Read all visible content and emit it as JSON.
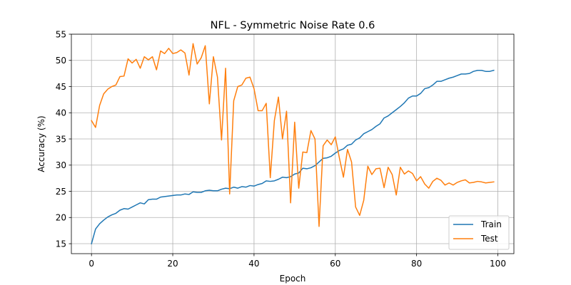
{
  "chart_data": {
    "type": "line",
    "title": "NFL - Symmetric Noise Rate 0.6",
    "xlabel": "Epoch",
    "ylabel": "Accuracy (%)",
    "xlim": [
      -4.95,
      103.95
    ],
    "ylim": [
      13.1,
      55.0
    ],
    "xticks": [
      0,
      20,
      40,
      60,
      80,
      100
    ],
    "yticks": [
      15,
      20,
      25,
      30,
      35,
      40,
      45,
      50,
      55
    ],
    "grid": true,
    "legend_position": "lower right",
    "colors": {
      "Train": "#1f77b4",
      "Test": "#ff7f0e"
    },
    "x": [
      0,
      1,
      2,
      3,
      4,
      5,
      6,
      7,
      8,
      9,
      10,
      11,
      12,
      13,
      14,
      15,
      16,
      17,
      18,
      19,
      20,
      21,
      22,
      23,
      24,
      25,
      26,
      27,
      28,
      29,
      30,
      31,
      32,
      33,
      34,
      35,
      36,
      37,
      38,
      39,
      40,
      41,
      42,
      43,
      44,
      45,
      46,
      47,
      48,
      49,
      50,
      51,
      52,
      53,
      54,
      55,
      56,
      57,
      58,
      59,
      60,
      61,
      62,
      63,
      64,
      65,
      66,
      67,
      68,
      69,
      70,
      71,
      72,
      73,
      74,
      75,
      76,
      77,
      78,
      79,
      80,
      81,
      82,
      83,
      84,
      85,
      86,
      87,
      88,
      89,
      90,
      91,
      92,
      93,
      94,
      95,
      96,
      97,
      98,
      99
    ],
    "series": [
      {
        "name": "Train",
        "values": [
          15.0,
          17.8,
          18.8,
          19.5,
          20.1,
          20.5,
          20.8,
          21.4,
          21.7,
          21.6,
          22.0,
          22.4,
          22.8,
          22.6,
          23.4,
          23.5,
          23.5,
          23.9,
          24.0,
          24.1,
          24.2,
          24.3,
          24.3,
          24.5,
          24.4,
          24.9,
          24.8,
          24.8,
          25.1,
          25.2,
          25.1,
          25.1,
          25.4,
          25.6,
          25.5,
          25.8,
          25.6,
          25.9,
          25.8,
          26.1,
          26.0,
          26.3,
          26.5,
          27.0,
          26.9,
          27.0,
          27.3,
          27.7,
          27.6,
          27.8,
          28.3,
          28.5,
          29.4,
          29.3,
          29.5,
          29.9,
          30.6,
          31.3,
          31.4,
          31.7,
          32.3,
          32.8,
          33.1,
          33.8,
          34.0,
          34.8,
          35.2,
          36.0,
          36.4,
          36.8,
          37.4,
          37.9,
          39.0,
          39.4,
          40.0,
          40.6,
          41.2,
          41.9,
          42.8,
          43.2,
          43.2,
          43.7,
          44.6,
          44.8,
          45.3,
          46.0,
          46.0,
          46.3,
          46.6,
          46.8,
          47.1,
          47.4,
          47.4,
          47.5,
          47.9,
          48.1,
          48.1,
          47.9,
          47.9,
          48.1
        ]
      },
      {
        "name": "Test",
        "values": [
          38.5,
          37.2,
          41.4,
          43.6,
          44.5,
          45.0,
          45.3,
          46.9,
          47.0,
          50.3,
          49.5,
          50.2,
          48.5,
          50.7,
          50.1,
          50.7,
          48.2,
          51.8,
          51.3,
          52.3,
          51.3,
          51.5,
          52.0,
          51.4,
          47.2,
          53.2,
          49.3,
          50.5,
          52.8,
          41.7,
          50.7,
          46.8,
          34.8,
          48.5,
          24.5,
          42.3,
          45.0,
          45.3,
          46.6,
          46.8,
          44.6,
          40.4,
          40.4,
          41.8,
          27.6,
          38.5,
          43.0,
          35.0,
          40.3,
          22.8,
          38.2,
          25.6,
          32.5,
          32.4,
          36.6,
          35.0,
          18.3,
          33.7,
          34.8,
          33.9,
          35.4,
          31.4,
          27.7,
          33.0,
          30.6,
          22.0,
          20.4,
          23.3,
          29.8,
          28.2,
          29.3,
          29.4,
          25.7,
          29.6,
          28.2,
          24.3,
          29.6,
          28.3,
          28.9,
          28.4,
          27.0,
          27.8,
          26.4,
          25.6,
          26.9,
          27.5,
          27.1,
          26.2,
          26.6,
          26.2,
          26.7,
          27.0,
          27.2,
          26.6,
          26.7,
          26.9,
          26.8,
          26.6,
          26.7,
          26.8
        ]
      }
    ]
  }
}
